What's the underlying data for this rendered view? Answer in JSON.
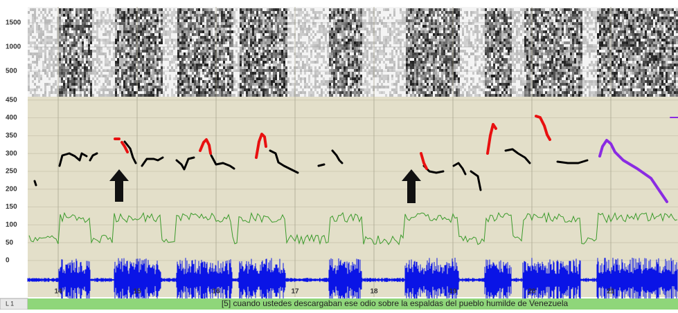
{
  "spectrogram_axis": {
    "ticks": [
      1500,
      1000,
      500
    ]
  },
  "pitch_axis": {
    "ticks": [
      450,
      400,
      350,
      300,
      250,
      200,
      150,
      100,
      50,
      0
    ]
  },
  "time_axis": {
    "ticks": [
      14,
      15,
      16,
      17,
      18,
      19,
      20,
      21
    ]
  },
  "tier": {
    "label": "L 1",
    "text": "[5] cuando ustedes descargaban ese odio sobre la espaldas del pueblo humilde de Venezuela"
  }
}
